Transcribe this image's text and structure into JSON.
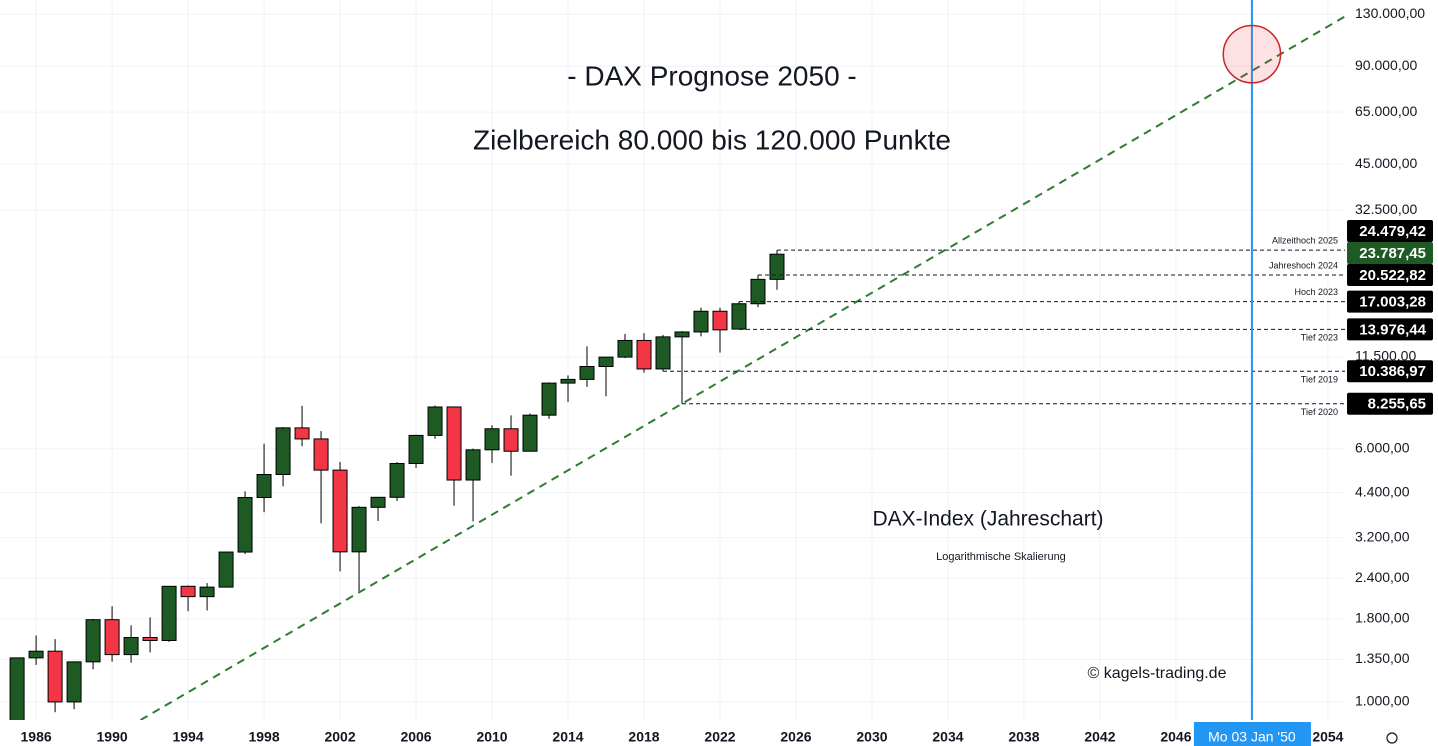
{
  "chart_data": {
    "type": "candlestick",
    "title": "- DAX Prognose 2050 -",
    "subtitle": "Zielbereich 80.000 bis 120.000 Punkte",
    "annotations": [
      "DAX-Index (Jahreschart)",
      "Logarithmische Skalierung",
      "© kagels-trading.de"
    ],
    "log_scale": true,
    "grid": true,
    "up_color": "#1e5a24",
    "down_color": "#f23645",
    "x": [
      1985,
      1986,
      1987,
      1988,
      1989,
      1990,
      1991,
      1992,
      1993,
      1994,
      1995,
      1996,
      1997,
      1998,
      1999,
      2000,
      2001,
      2002,
      2003,
      2004,
      2005,
      2006,
      2007,
      2008,
      2009,
      2010,
      2011,
      2012,
      2013,
      2014,
      2015,
      2016,
      2017,
      2018,
      2019,
      2020,
      2021,
      2022,
      2023,
      2024,
      2025
    ],
    "open": [
      820,
      1366,
      1432,
      1000,
      1328,
      1790,
      1398,
      1578,
      1545,
      2267,
      2107,
      2254,
      2889,
      4250,
      5002,
      6958,
      6434,
      5160,
      2893,
      3965,
      4256,
      5408,
      6597,
      8067,
      4810,
      5957,
      6914,
      5898,
      7612,
      9552,
      9806,
      10743,
      11481,
      12918,
      10559,
      13249,
      13719,
      15885,
      14000,
      16752,
      19909
    ],
    "high": [
      1370,
      1600,
      1560,
      1330,
      1800,
      1970,
      1720,
      1820,
      2270,
      2280,
      2320,
      2900,
      4440,
      6220,
      7000,
      8136,
      6800,
      5470,
      4000,
      4200,
      5460,
      6630,
      8150,
      8100,
      6010,
      7090,
      7600,
      7700,
      9600,
      10090,
      12390,
      11480,
      13530,
      13600,
      13430,
      13800,
      16290,
      16290,
      17003.28,
      20522.82,
      24479.42
    ],
    "low": [
      810,
      1300,
      930,
      950,
      1260,
      1330,
      1320,
      1420,
      1530,
      1900,
      1910,
      2250,
      2850,
      3830,
      4600,
      6110,
      3540,
      2520,
      2190,
      3600,
      4150,
      5240,
      6440,
      4010,
      3590,
      5430,
      4960,
      5900,
      7420,
      8350,
      9300,
      8700,
      11400,
      10280,
      10386.97,
      8255.65,
      13300,
      11860,
      13976.44,
      16350,
      18490
    ],
    "close": [
      1366,
      1432,
      1000,
      1328,
      1790,
      1398,
      1578,
      1545,
      2267,
      2107,
      2254,
      2889,
      4250,
      5002,
      6958,
      6434,
      5160,
      2893,
      3965,
      4256,
      5408,
      6597,
      8067,
      4810,
      5957,
      6914,
      5898,
      7612,
      9552,
      9806,
      10743,
      11481,
      12918,
      10559,
      13249,
      13719,
      15885,
      13924,
      16752,
      19909,
      23787.45
    ],
    "last_close_label": "23.787,45",
    "xlim": [
      1984.1,
      2054.9
    ],
    "xticks": [
      1986,
      1990,
      1994,
      1998,
      2002,
      2006,
      2010,
      2014,
      2018,
      2022,
      2026,
      2030,
      2034,
      2038,
      2042,
      2046,
      2050,
      2054
    ],
    "ylim": [
      880,
      143800
    ],
    "yticks": [
      {
        "value": 130000,
        "label": "130.000,00"
      },
      {
        "value": 90000,
        "label": "90.000,00"
      },
      {
        "value": 65000,
        "label": "65.000,00"
      },
      {
        "value": 45000,
        "label": "45.000,00"
      },
      {
        "value": 32500,
        "label": "32.500,00"
      },
      {
        "value": 11500,
        "label": "11.500,00"
      },
      {
        "value": 6000,
        "label": "6.000,00"
      },
      {
        "value": 4400,
        "label": "4.400,00"
      },
      {
        "value": 3200,
        "label": "3.200,00"
      },
      {
        "value": 2400,
        "label": "2.400,00"
      },
      {
        "value": 1800,
        "label": "1.800,00"
      },
      {
        "value": 1350,
        "label": "1.350,00"
      },
      {
        "value": 1000,
        "label": "1.000,00"
      }
    ],
    "levels": [
      {
        "label": "Allzeithoch 2025",
        "value": 24479.42,
        "value_label": "24.479,42"
      },
      {
        "label": "Jahreshoch 2024",
        "value": 20522.82,
        "value_label": "20.522,82"
      },
      {
        "label": "Hoch 2023",
        "value": 17003.28,
        "value_label": "17.003,28"
      },
      {
        "label": "Tief 2023",
        "value": 13976.44,
        "value_label": "13.976,44"
      },
      {
        "label": "Tief 2019",
        "value": 10386.97,
        "value_label": "10.386,97"
      },
      {
        "label": "Tief 2020",
        "value": 8255.65,
        "value_label": "8.255,65"
      }
    ],
    "trend_line": {
      "x": [
        1991.5,
        2054.9
      ],
      "values": [
        880,
        128000
      ],
      "color": "#2e7d32"
    },
    "target_zone": {
      "x": 2050,
      "range": [
        80000,
        120000
      ],
      "color": "#c62828"
    },
    "crosshair": {
      "x": 2050.0,
      "label": "Mo 03 Jan '50",
      "color": "#2196f3"
    }
  }
}
